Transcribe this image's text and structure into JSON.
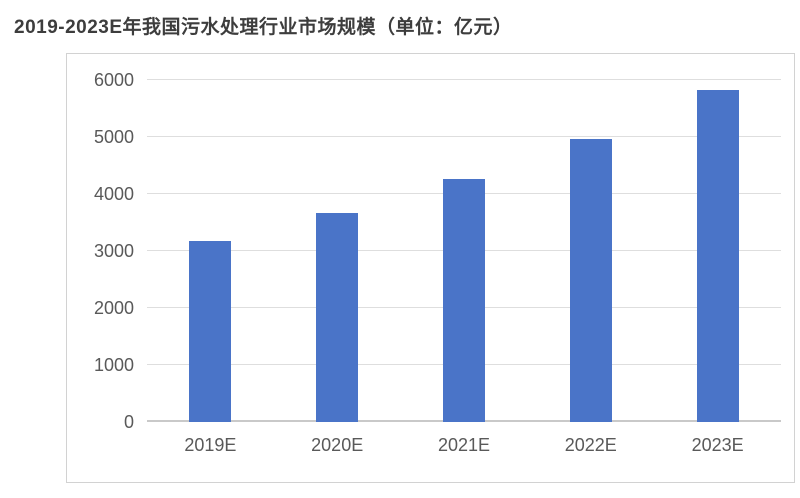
{
  "title": "2019-2023E年我国污水处理行业市场规模（单位：亿元）",
  "chart_data": {
    "type": "bar",
    "title": "2019-2023E年我国污水处理行业市场规模（单位：亿元）",
    "categories": [
      "2019E",
      "2020E",
      "2021E",
      "2022E",
      "2023E"
    ],
    "values": [
      3170,
      3670,
      4270,
      4960,
      5820
    ],
    "xlabel": "",
    "ylabel": "",
    "unit": "亿元",
    "ylim": [
      0,
      6000
    ],
    "yticks": [
      0,
      1000,
      2000,
      3000,
      4000,
      5000,
      6000
    ],
    "grid": true,
    "legend": "none",
    "bar_color": "#4a74c8"
  },
  "colors": {
    "bar": "#4a74c8",
    "axis_text": "#595959",
    "title_text": "#3d3d3d",
    "gridline": "#dedede",
    "axis_line": "#c9c9c9",
    "chart_border": "#d2d2d2",
    "background": "#ffffff"
  }
}
